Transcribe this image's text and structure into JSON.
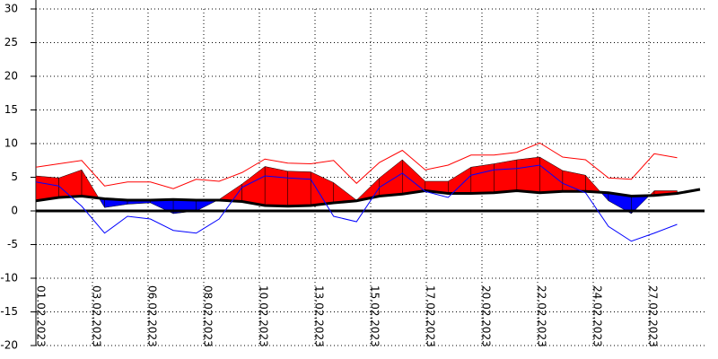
{
  "chart_data": {
    "type": "line-band",
    "xtick_labels": [
      "01.02.2023",
      "03.02.2023",
      "06.02.2023",
      "08.02.2023",
      "10.02.2023",
      "13.02.2023",
      "15.02.2023",
      "17.02.2023",
      "20.02.2023",
      "22.02.2023",
      "24.02.2023",
      "27.02.2023"
    ],
    "ylim": [
      -20,
      30
    ],
    "yticks": [
      -20,
      -15,
      -10,
      -5,
      0,
      5,
      10,
      15,
      20,
      25,
      30
    ],
    "grid": true,
    "above_color": "#ff0000",
    "below_color": "#0000ff",
    "series": [
      {
        "role": "mean",
        "color": "#000000",
        "values": [
          1.5,
          2,
          2.2,
          1.8,
          1.6,
          1.6,
          1.7,
          1.6,
          1.6,
          1.4,
          0.8,
          0.7,
          0.8,
          1.2,
          1.5,
          2.2,
          2.5,
          3,
          2.6,
          2.6,
          2.7,
          3,
          2.7,
          2.9,
          2.9,
          2.7,
          2.2,
          2.3,
          2.6,
          3.2
        ]
      },
      {
        "role": "actual",
        "color": "#000000",
        "values": [
          5.2,
          4.9,
          6.1,
          0.5,
          1,
          1.2,
          -0.4,
          0,
          1.7,
          4,
          6.6,
          5.9,
          5.8,
          4.2,
          1.6,
          4.9,
          7.6,
          4.4,
          4.4,
          6.5,
          7,
          7.6,
          8,
          6,
          5.3,
          1.5,
          -0.4,
          3,
          3,
          null
        ]
      },
      {
        "role": "max",
        "color": "#ff0000",
        "values": [
          6.5,
          7,
          7.5,
          3.7,
          4.3,
          4.3,
          3.3,
          4.7,
          4.4,
          5.7,
          7.7,
          7.1,
          7,
          7.5,
          4.1,
          7.2,
          9,
          6.1,
          6.8,
          8.3,
          8.3,
          8.7,
          10.1,
          8,
          7.6,
          4.9,
          4.7,
          8.5,
          7.9,
          null
        ]
      },
      {
        "role": "min",
        "color": "#0000ff",
        "values": [
          4.3,
          3.7,
          0.7,
          -3.3,
          -0.8,
          -1.2,
          -2.9,
          -3.3,
          -1.2,
          3.5,
          5.2,
          4.9,
          4.7,
          -0.8,
          -1.6,
          3.5,
          5.6,
          2.9,
          2,
          5.3,
          6.1,
          6.3,
          6.8,
          4.1,
          2.7,
          -2.3,
          -4.5,
          -3.3,
          -2,
          null
        ]
      }
    ]
  }
}
